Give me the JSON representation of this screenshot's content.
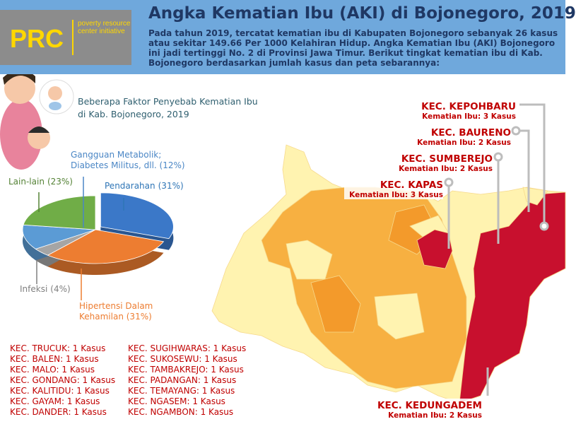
{
  "header": {
    "logo": "PRC",
    "logo_tagline": "poverty resource center initiative",
    "title": "Angka Kematian Ibu (AKI) di Bojonegoro, 2019",
    "paragraph": "Pada tahun 2019, tercatat kematian ibu di Kabupaten Bojonegoro sebanyak 26 kasus atau sekitar 149.66 Per 1000 Kelahiran Hidup. Angka Kematian Ibu (AKI) Bojonegoro ini jadi tertinggi No. 2 di Provinsi Jawa Timur. Berikut tingkat kematian ibu di Kab. Bojonegoro berdasarkan jumlah kasus dan peta sebarannya:"
  },
  "chart_data": {
    "type": "pie",
    "title": "Beberapa Faktor Penyebab Kematian Ibu di Kab. Bojonegoro, 2019",
    "categories": [
      "Pendarahan",
      "Hipertensi Dalam Kehamilan",
      "Infeksi",
      "Gangguan Metabolik; Diabetes Militus, dll.",
      "Lain-lain"
    ],
    "values": [
      31,
      31,
      4,
      12,
      23
    ],
    "value_labels": [
      "(31%)",
      "(31%)",
      "(4%)",
      "(12%)",
      "(23%)"
    ],
    "colors": [
      "#3b78c8",
      "#ed7d31",
      "#a5a5a5",
      "#5b9bd5",
      "#70ad47"
    ]
  },
  "map_labels": [
    {
      "name": "KEC. KEPOHBARU",
      "detail": "Kematian Ibu: 3 Kasus"
    },
    {
      "name": "KEC. BAURENO",
      "detail": "Kematian Ibu: 2 Kasus"
    },
    {
      "name": "KEC. SUMBEREJO",
      "detail": "Kematian Ibu: 2 Kasus"
    },
    {
      "name": "KEC. KAPAS",
      "detail": "Kematian Ibu: 3 Kasus"
    },
    {
      "name": "KEC. KEDUNGADEM",
      "detail": "Kematian Ibu: 2 Kasus"
    }
  ],
  "case_list": [
    [
      "KEC. TRUCUK: 1 Kasus",
      "KEC. BALEN: 1 Kasus",
      "KEC. MALO: 1 Kasus",
      "KEC. GONDANG: 1 Kasus",
      "KEC. KALITIDU: 1 Kasus",
      "KEC. GAYAM: 1 Kasus",
      "KEC. DANDER: 1 Kasus"
    ],
    [
      "KEC. SUGIHWARAS: 1 Kasus",
      "KEC. SUKOSEWU: 1 Kasus",
      "KEC. TAMBAKREJO: 1 Kasus",
      "KEC. PADANGAN: 1 Kasus",
      "KEC. TEMAYANG: 1 Kasus",
      "KEC. NGASEM: 1 Kasus",
      "KEC. NGAMBON: 1 Kasus"
    ]
  ]
}
